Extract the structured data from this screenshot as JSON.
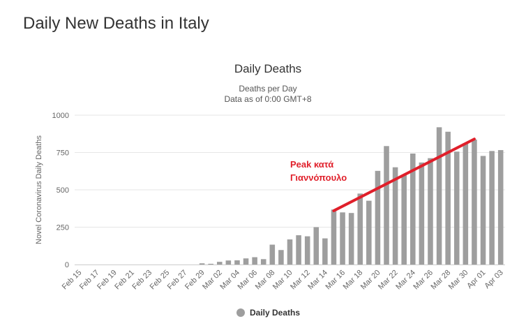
{
  "page": {
    "title": "Daily New Deaths in Italy"
  },
  "colors": {
    "bar": "#9e9e9e",
    "grid": "#e6e6e6",
    "trend": "#e01f2a",
    "annotation": "#e01f2a"
  },
  "chart_data": {
    "type": "bar",
    "title": "Daily Deaths",
    "subtitle": "Deaths per Day",
    "subtitle2": "Data as of 0:00 GMT+8",
    "ylabel": "Novel Coronavirus Daily Deaths",
    "xlabel": "",
    "ylim": [
      0,
      1000
    ],
    "yticks": [
      0,
      250,
      500,
      750,
      1000
    ],
    "grid": true,
    "categories": [
      "Feb 15",
      "Feb 16",
      "Feb 17",
      "Feb 18",
      "Feb 19",
      "Feb 20",
      "Feb 21",
      "Feb 22",
      "Feb 23",
      "Feb 24",
      "Feb 25",
      "Feb 26",
      "Feb 27",
      "Feb 28",
      "Feb 29",
      "Mar 01",
      "Mar 02",
      "Mar 03",
      "Mar 04",
      "Mar 05",
      "Mar 06",
      "Mar 07",
      "Mar 08",
      "Mar 09",
      "Mar 10",
      "Mar 11",
      "Mar 12",
      "Mar 13",
      "Mar 14",
      "Mar 15",
      "Mar 16",
      "Mar 17",
      "Mar 18",
      "Mar 19",
      "Mar 20",
      "Mar 21",
      "Mar 22",
      "Mar 23",
      "Mar 24",
      "Mar 25",
      "Mar 26",
      "Mar 27",
      "Mar 28",
      "Mar 29",
      "Mar 30",
      "Mar 31",
      "Apr 01",
      "Apr 02",
      "Apr 03"
    ],
    "tick_labels": [
      "Feb 15",
      "Feb 17",
      "Feb 19",
      "Feb 21",
      "Feb 23",
      "Feb 25",
      "Feb 27",
      "Feb 29",
      "Mar 02",
      "Mar 04",
      "Mar 06",
      "Mar 08",
      "Mar 10",
      "Mar 12",
      "Mar 14",
      "Mar 16",
      "Mar 18",
      "Mar 20",
      "Mar 22",
      "Mar 24",
      "Mar 26",
      "Mar 28",
      "Mar 30",
      "Apr 01",
      "Apr 03"
    ],
    "series": [
      {
        "name": "Daily Deaths",
        "values": [
          0,
          0,
          0,
          0,
          0,
          0,
          0,
          0,
          0,
          0,
          0,
          0,
          0,
          0,
          8,
          5,
          18,
          27,
          28,
          41,
          49,
          36,
          133,
          97,
          168,
          196,
          189,
          250,
          175,
          368,
          349,
          345,
          475,
          427,
          627,
          793,
          651,
          601,
          743,
          683,
          712,
          919,
          889,
          756,
          812,
          837,
          727,
          760,
          766
        ]
      }
    ],
    "legend": {
      "label": "Daily Deaths",
      "position": "bottom-center"
    },
    "annotation": {
      "text_line1": "Peak κατά",
      "text_line2": "Γιαννόπουλο"
    },
    "trend_line": {
      "from": {
        "category": "Mar 15",
        "value": 360
      },
      "to": {
        "category": "Mar 31",
        "value": 840
      }
    }
  }
}
